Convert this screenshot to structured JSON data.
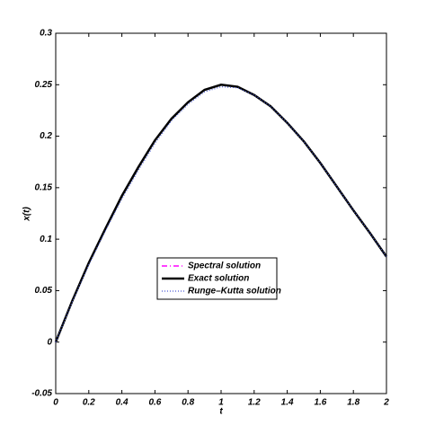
{
  "chart_data": {
    "type": "line",
    "x_label": "t",
    "y_label": "x(t)",
    "x": [
      0,
      0.1,
      0.2,
      0.3,
      0.4,
      0.5,
      0.6,
      0.7,
      0.8,
      0.9,
      1.0,
      1.1,
      1.2,
      1.3,
      1.4,
      1.5,
      1.6,
      1.7,
      1.8,
      1.9,
      2.0
    ],
    "series": [
      {
        "name": "Spectral solution",
        "color": "#ff00ff",
        "dash": "6,3,1,3",
        "width": 1.5,
        "values": [
          0,
          0.04,
          0.077,
          0.11,
          0.142,
          0.17,
          0.196,
          0.217,
          0.233,
          0.245,
          0.25,
          0.248,
          0.24,
          0.229,
          0.213,
          0.195,
          0.174,
          0.151,
          0.128,
          0.106,
          0.083
        ]
      },
      {
        "name": "Exact solution",
        "color": "#000000",
        "dash": "none",
        "width": 2.5,
        "values": [
          0,
          0.04,
          0.077,
          0.11,
          0.142,
          0.17,
          0.196,
          0.217,
          0.233,
          0.245,
          0.25,
          0.248,
          0.24,
          0.229,
          0.213,
          0.195,
          0.174,
          0.151,
          0.128,
          0.106,
          0.083
        ]
      },
      {
        "name": "Runge–Kutta solution",
        "color": "#4a5bd4",
        "dash": "1,2",
        "width": 1.2,
        "values": [
          0,
          0.039,
          0.075,
          0.108,
          0.139,
          0.167,
          0.193,
          0.215,
          0.231,
          0.243,
          0.248,
          0.247,
          0.24,
          0.229,
          0.213,
          0.195,
          0.174,
          0.151,
          0.128,
          0.106,
          0.083
        ]
      }
    ],
    "xlim": [
      0,
      2
    ],
    "ylim": [
      -0.05,
      0.3
    ],
    "xticks": [
      0,
      0.2,
      0.4,
      0.6,
      0.8,
      1,
      1.2,
      1.4,
      1.6,
      1.8,
      2
    ],
    "yticks": [
      -0.05,
      0,
      0.05,
      0.1,
      0.15,
      0.2,
      0.25,
      0.3
    ],
    "grid": false
  }
}
